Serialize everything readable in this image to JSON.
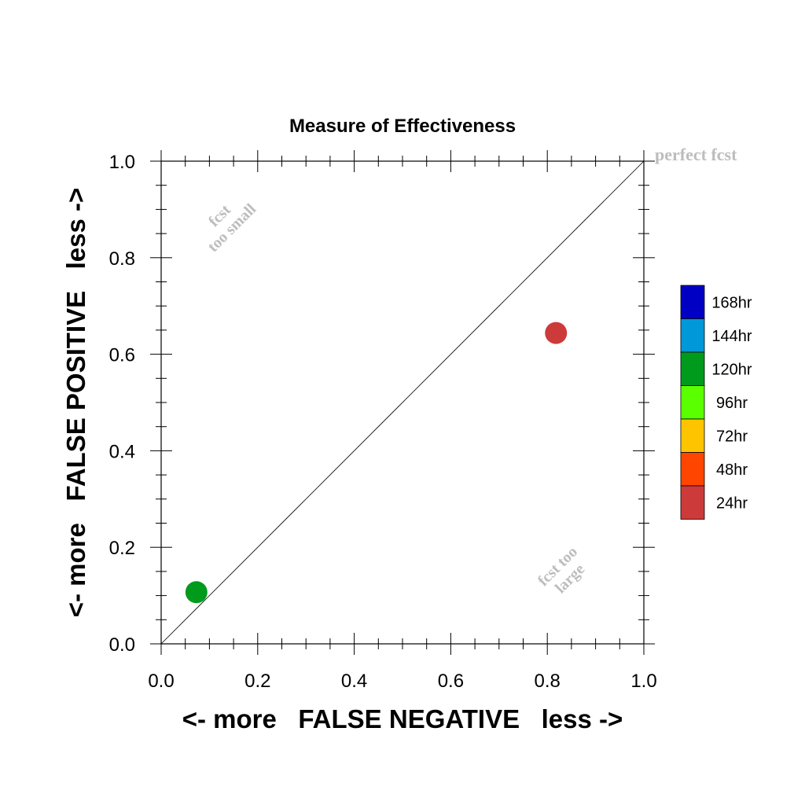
{
  "chart_data": {
    "type": "scatter",
    "title": "Measure of Effectiveness",
    "xlabel": "<- more   FALSE NEGATIVE   less ->",
    "ylabel": "<- more   FALSE POSITIVE   less ->",
    "xlim": [
      0,
      1
    ],
    "ylim": [
      0,
      1
    ],
    "xticks": [
      "0.0",
      "0.2",
      "0.4",
      "0.6",
      "0.8",
      "1.0"
    ],
    "yticks": [
      "0.0",
      "0.2",
      "0.4",
      "0.6",
      "0.8",
      "1.0"
    ],
    "grid": false,
    "diagonal_line": true,
    "annotations": {
      "perfect": "perfect fcst",
      "too_small_1": "fcst",
      "too_small_2": "too small",
      "too_large_1": "fcst too",
      "too_large_2": "large"
    },
    "points": [
      {
        "x": 0.073,
        "y": 0.107,
        "color": "#009a1d"
      },
      {
        "x": 0.818,
        "y": 0.644,
        "color": "#cd3a3a"
      }
    ],
    "legend": {
      "placement": "right",
      "entries": [
        {
          "label": "168hr",
          "color": "#0000c4"
        },
        {
          "label": "144hr",
          "color": "#0098d9"
        },
        {
          "label": "120hr",
          "color": "#009a1d"
        },
        {
          "label": "96hr",
          "color": "#5aff00"
        },
        {
          "label": "72hr",
          "color": "#ffc400"
        },
        {
          "label": "48hr",
          "color": "#ff4500"
        },
        {
          "label": "24hr",
          "color": "#cd3a3a"
        }
      ]
    }
  }
}
